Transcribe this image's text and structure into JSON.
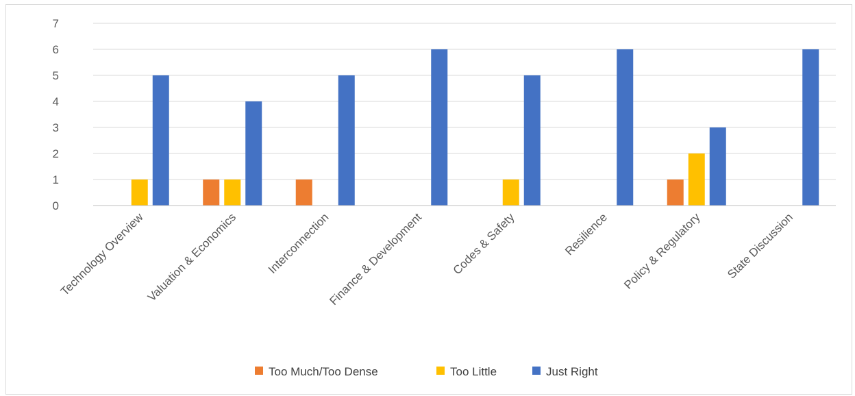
{
  "chart_data": {
    "type": "bar",
    "title": "",
    "xlabel": "",
    "ylabel": "",
    "ylim": [
      0,
      7
    ],
    "yticks": [
      0,
      1,
      2,
      3,
      4,
      5,
      6,
      7
    ],
    "grid": true,
    "legend_position": "bottom",
    "categories": [
      "Technology Overview",
      "Valuation & Economics",
      "Interconnection",
      "Finance & Development",
      "Codes & Safety",
      "Resilience",
      "Policy & Regulatory",
      "State Discussion"
    ],
    "series": [
      {
        "name": "Too Much/Too Dense",
        "color": "#ed7d31",
        "values": [
          0,
          1,
          1,
          0,
          0,
          0,
          1,
          0
        ]
      },
      {
        "name": "Too Little",
        "color": "#ffc000",
        "values": [
          1,
          1,
          0,
          0,
          1,
          0,
          2,
          0
        ]
      },
      {
        "name": "Just Right",
        "color": "#4472c4",
        "values": [
          5,
          4,
          5,
          6,
          5,
          6,
          3,
          6
        ]
      }
    ]
  }
}
